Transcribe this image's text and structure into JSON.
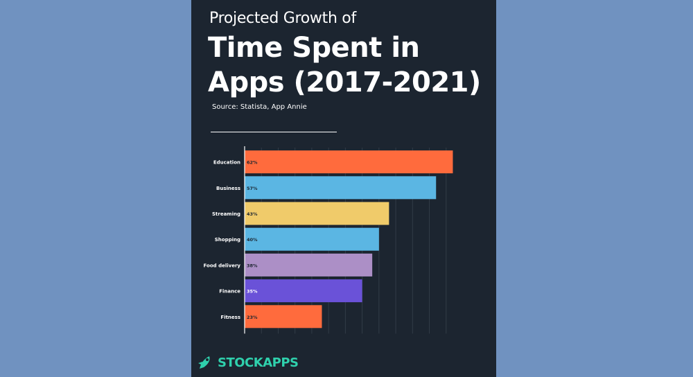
{
  "page": {
    "subtitle": "Projected Growth of",
    "title": "Time Spent in Apps (2017-2021)",
    "source": "Source: Statista, App Annie",
    "brand": "STOCKAPPS"
  },
  "colors": {
    "background": "#7092c0",
    "card": "#1c2530",
    "brand": "#2fd1ad"
  },
  "chart_data": {
    "type": "bar",
    "orientation": "horizontal",
    "title": "Projected Growth of Time Spent in Apps (2017-2021)",
    "categories": [
      "Education",
      "Business",
      "Streaming",
      "Shopping",
      "Food delivery",
      "Finance",
      "Fitness"
    ],
    "values": [
      62,
      57,
      43,
      40,
      38,
      35,
      23
    ],
    "value_labels": [
      "62%",
      "57%",
      "43%",
      "40%",
      "38%",
      "35%",
      "23%"
    ],
    "colors": [
      "#ff6b3d",
      "#5bb6e3",
      "#f0cb6a",
      "#5bb6e3",
      "#ac8fc6",
      "#6a52d8",
      "#ff6b3d"
    ],
    "label_colors": [
      "#1c2530",
      "#1c2530",
      "#1c2530",
      "#1c2530",
      "#1c2530",
      "#ffffff",
      "#1c2530"
    ],
    "xlim": [
      0,
      65
    ],
    "grid": true
  }
}
